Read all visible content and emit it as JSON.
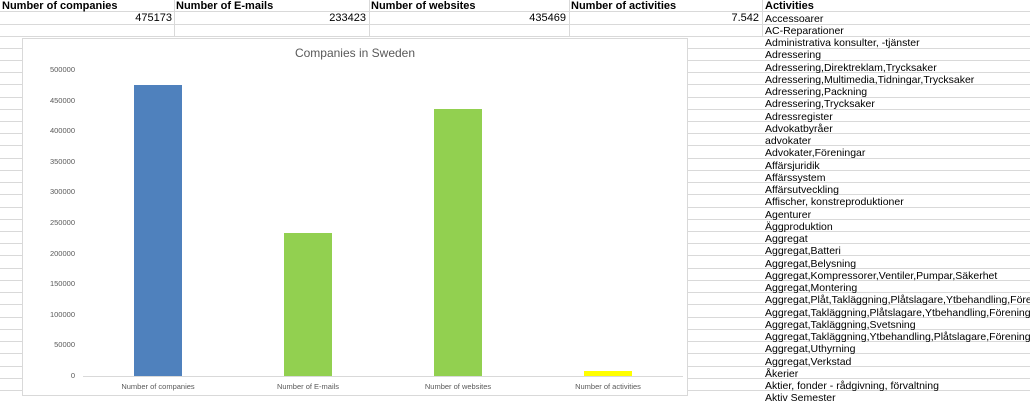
{
  "sheet": {
    "headers": {
      "companies": "Number of companies",
      "emails": "Number of E-mails",
      "websites": "Number of websites",
      "activities": "Number of activities",
      "activities_list": "Activities"
    },
    "values": {
      "companies": "475173",
      "emails": "233423",
      "websites": "435469",
      "activities": "7.542"
    },
    "activities": [
      "Accessoarer",
      "AC-Reparationer",
      "Administrativa konsulter, -tjänster",
      "Adressering",
      "Adressering,Direktreklam,Trycksaker",
      "Adressering,Multimedia,Tidningar,Trycksaker",
      "Adressering,Packning",
      "Adressering,Trycksaker",
      "Adressregister",
      "Advokatbyråer",
      "advokater",
      "Advokater,Föreningar",
      "Affärsjuridik",
      "Affärssystem",
      "Affärsutveckling",
      "Affischer, konstreproduktioner",
      "Agenturer",
      "Äggproduktion",
      "Aggregat",
      "Aggregat,Batteri",
      "Aggregat,Belysning",
      "Aggregat,Kompressorer,Ventiler,Pumpar,Säkerhet",
      "Aggregat,Montering",
      "Aggregat,Plåt,Takläggning,Plåtslagare,Ytbehandling,Föreningar",
      "Aggregat,Takläggning,Plåtslagare,Ytbehandling,Föreningar",
      "Aggregat,Takläggning,Svetsning",
      "Aggregat,Takläggning,Ytbehandling,Plåtslagare,Föreningar",
      "Aggregat,Uthyrning",
      "Aggregat,Verkstad",
      "Åkerier",
      "Aktier, fonder - rådgivning, förvaltning",
      "Aktiv Semester"
    ]
  },
  "colors": {
    "blue": "#4f81bd",
    "green": "#92d050",
    "yellow": "#ffff00"
  },
  "chart_data": {
    "type": "bar",
    "title": "Companies in Sweden",
    "categories": [
      "Number of companies",
      "Number of E-mails",
      "Number of websites",
      "Number of activities"
    ],
    "values": [
      475173,
      233423,
      435469,
      7542
    ],
    "bar_colors": [
      "#4f81bd",
      "#92d050",
      "#92d050",
      "#ffff00"
    ],
    "ylim": [
      0,
      500000
    ],
    "yticks": [
      "0",
      "50000",
      "100000",
      "150000",
      "200000",
      "250000",
      "300000",
      "350000",
      "400000",
      "450000",
      "500000"
    ],
    "xlabel": "",
    "ylabel": ""
  }
}
